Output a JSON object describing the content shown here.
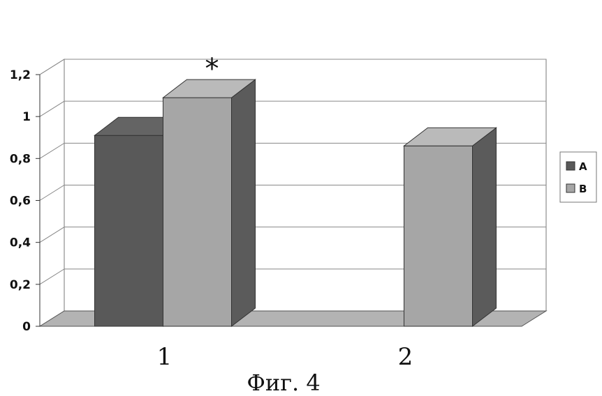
{
  "caption": "Фиг. 4",
  "chart_data": {
    "type": "bar",
    "categories": [
      "1",
      "2"
    ],
    "series": [
      {
        "name": "A",
        "values": [
          0.91,
          null
        ],
        "color": "#595959"
      },
      {
        "name": "B",
        "values": [
          1.09,
          0.86
        ],
        "color": "#a6a6a6"
      }
    ],
    "ylim": [
      0,
      1.2
    ],
    "yticks": [
      0,
      0.2,
      0.4,
      0.6,
      0.8,
      1,
      1.2
    ],
    "ytick_labels": [
      "0",
      "0,2",
      "0,4",
      "0,6",
      "0,8",
      "1",
      "1,2"
    ],
    "annotations": [
      {
        "category": "1",
        "series": "B",
        "text": "*"
      }
    ],
    "legend_position": "right",
    "grid": true,
    "style": "3d"
  }
}
